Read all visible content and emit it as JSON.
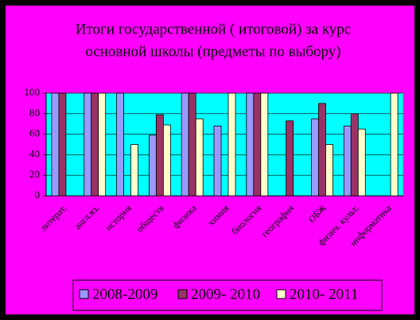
{
  "chart_data": {
    "type": "bar",
    "title": [
      "Итоги государственной ( итоговой) за курс",
      "основной школы (предметы по выбору)"
    ],
    "categories": [
      "литерат.",
      "англ.яз.",
      "история",
      "обществ",
      "физика",
      "химия",
      "биология",
      "география",
      "ОБЖ",
      "физич. культ.",
      "информатика"
    ],
    "series": [
      {
        "name": "2008-2009",
        "color": "#9999ff",
        "values": [
          100,
          100,
          100,
          59,
          100,
          68,
          100,
          null,
          75,
          68,
          null
        ]
      },
      {
        "name": "2009- 2010",
        "color": "#993366",
        "values": [
          100,
          100,
          null,
          79,
          100,
          null,
          100,
          73,
          90,
          80,
          null
        ]
      },
      {
        "name": "2010- 2011",
        "color": "#ffffcc",
        "values": [
          null,
          100,
          50,
          69,
          75,
          100,
          100,
          null,
          50,
          65,
          100
        ]
      }
    ],
    "ylim": [
      0,
      100
    ],
    "yticks": [
      0,
      20,
      40,
      60,
      80,
      100
    ],
    "grid": true,
    "legend": "bottom"
  }
}
